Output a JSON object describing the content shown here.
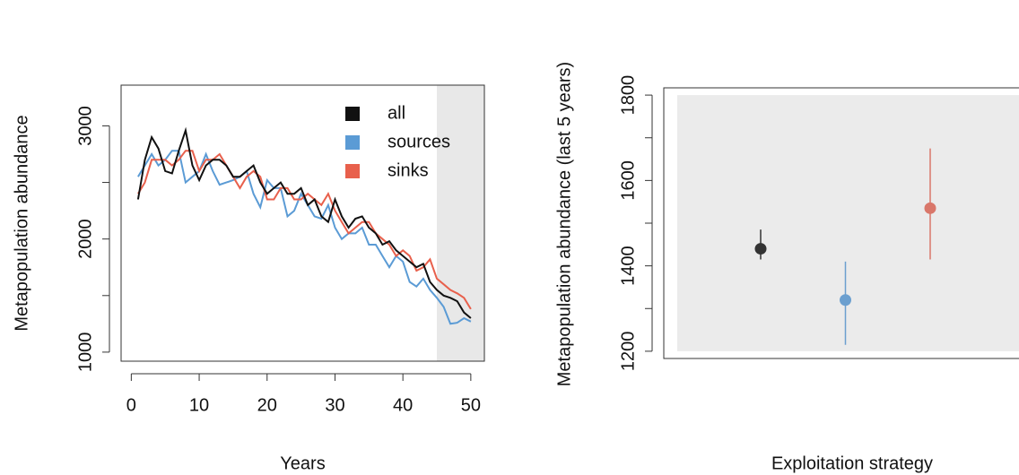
{
  "chart_data": [
    {
      "type": "line",
      "xlabel": "Years",
      "ylabel": "Metapopulation abundance",
      "x": [
        1,
        2,
        3,
        4,
        5,
        6,
        7,
        8,
        9,
        10,
        11,
        12,
        13,
        14,
        15,
        16,
        17,
        18,
        19,
        20,
        21,
        22,
        23,
        24,
        25,
        26,
        27,
        28,
        29,
        30,
        31,
        32,
        33,
        34,
        35,
        36,
        37,
        38,
        39,
        40,
        41,
        42,
        43,
        44,
        45,
        46,
        47,
        48,
        49,
        50
      ],
      "series": [
        {
          "name": "all",
          "color": "#111111",
          "values": [
            2350,
            2700,
            2900,
            2800,
            2600,
            2580,
            2780,
            2960,
            2650,
            2520,
            2650,
            2700,
            2700,
            2650,
            2550,
            2550,
            2600,
            2650,
            2500,
            2400,
            2450,
            2500,
            2400,
            2400,
            2450,
            2300,
            2350,
            2200,
            2150,
            2350,
            2200,
            2100,
            2180,
            2200,
            2100,
            2050,
            1950,
            1980,
            1900,
            1850,
            1800,
            1750,
            1780,
            1620,
            1550,
            1500,
            1480,
            1450,
            1350,
            1300
          ]
        },
        {
          "name": "sources",
          "color": "#5b9bd5",
          "values": [
            2550,
            2650,
            2750,
            2650,
            2700,
            2780,
            2780,
            2500,
            2550,
            2600,
            2750,
            2600,
            2480,
            2500,
            2520,
            2550,
            2600,
            2400,
            2280,
            2520,
            2450,
            2450,
            2200,
            2250,
            2400,
            2300,
            2200,
            2180,
            2300,
            2100,
            2000,
            2050,
            2050,
            2100,
            1950,
            1950,
            1850,
            1750,
            1850,
            1800,
            1620,
            1580,
            1650,
            1550,
            1480,
            1400,
            1250,
            1260,
            1300,
            1270
          ]
        },
        {
          "name": "sinks",
          "color": "#e8604c",
          "values": [
            2400,
            2500,
            2700,
            2700,
            2700,
            2650,
            2700,
            2780,
            2780,
            2600,
            2700,
            2700,
            2750,
            2650,
            2550,
            2450,
            2550,
            2600,
            2550,
            2350,
            2350,
            2450,
            2450,
            2350,
            2350,
            2400,
            2350,
            2300,
            2400,
            2250,
            2150,
            2050,
            2100,
            2150,
            2150,
            2050,
            2000,
            1950,
            1850,
            1900,
            1850,
            1720,
            1750,
            1820,
            1650,
            1600,
            1550,
            1520,
            1480,
            1380
          ]
        }
      ],
      "xlim": [
        -1.5,
        52
      ],
      "ylim": [
        920,
        3360
      ],
      "xticks": [
        0,
        10,
        20,
        30,
        40,
        50
      ],
      "yticks": [
        1000,
        2000,
        3000
      ],
      "yminorticks": [
        1500,
        2500
      ],
      "shade_x": [
        45,
        52
      ],
      "shade_color": "#e8e8e8"
    },
    {
      "type": "pointrange",
      "xlabel": "Exploitation strategy",
      "ylabel": "Metapopulation abundance (last 5 years)",
      "categories": [
        null,
        null,
        null
      ],
      "values": [
        1440,
        1320,
        1535
      ],
      "lower": [
        1415,
        1215,
        1415
      ],
      "upper": [
        1485,
        1410,
        1675
      ],
      "colors": [
        "#333333",
        "#6b9fcf",
        "#d9776a"
      ],
      "ylim": [
        1183,
        1817
      ],
      "yticks": [
        1200,
        1400,
        1600,
        1800
      ],
      "yminorticks": [
        1300,
        1500,
        1700
      ],
      "shade_y": [
        1200,
        1800
      ],
      "shade_color": "#ebebeb"
    }
  ]
}
